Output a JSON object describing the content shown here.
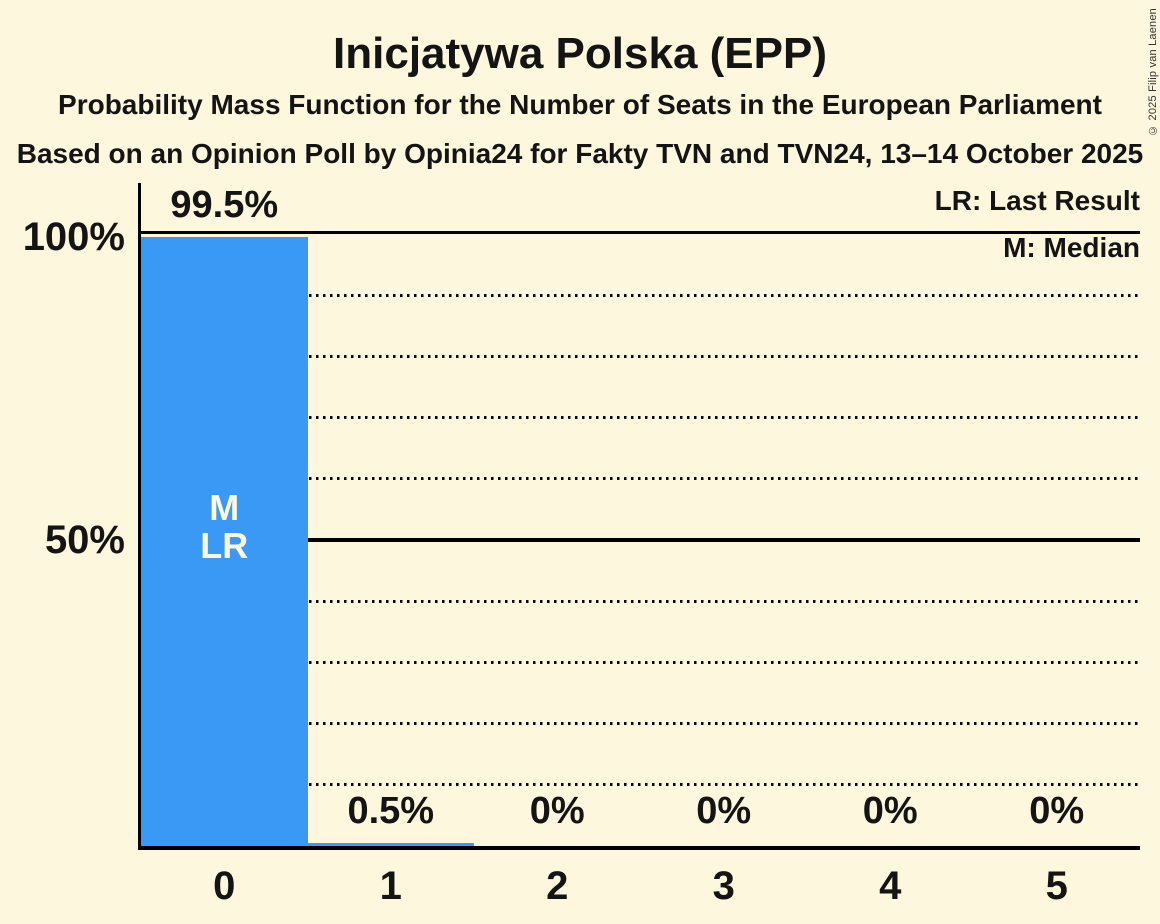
{
  "header": {
    "title": "Inicjatywa Polska (EPP)",
    "subtitle1": "Probability Mass Function for the Number of Seats in the European Parliament",
    "subtitle2": "Based on an Opinion Poll by Opinia24 for Fakty TVN and TVN24, 13–14 October 2025"
  },
  "legend": {
    "lr": "LR: Last Result",
    "m": "M: Median"
  },
  "copyright": "© 2025 Filip van Laenen",
  "y_axis": {
    "labels": [
      {
        "text": "100%",
        "value": 100
      },
      {
        "text": "50%",
        "value": 50
      }
    ]
  },
  "chart_data": {
    "type": "bar",
    "title": "Inicjatywa Polska (EPP)",
    "xlabel": "Number of Seats",
    "ylabel": "Probability",
    "categories": [
      "0",
      "1",
      "2",
      "3",
      "4",
      "5"
    ],
    "values": [
      99.5,
      0.5,
      0,
      0,
      0,
      0
    ],
    "value_labels": [
      "99.5%",
      "0.5%",
      "0%",
      "0%",
      "0%",
      "0%"
    ],
    "bar_annotations": [
      [
        "M",
        "LR"
      ],
      [],
      [],
      [],
      [],
      []
    ],
    "ylim": [
      0,
      100
    ],
    "grid": {
      "dotted_lines": [
        10,
        20,
        30,
        40,
        60,
        70,
        80,
        90
      ],
      "solid_lines": [
        50,
        100
      ]
    },
    "legend_position": "top-right",
    "colors": {
      "bar": "#3B99F6",
      "background": "#FCF7DD",
      "text": "#141414",
      "bar_annotation_text": "#FCF7DD"
    }
  }
}
